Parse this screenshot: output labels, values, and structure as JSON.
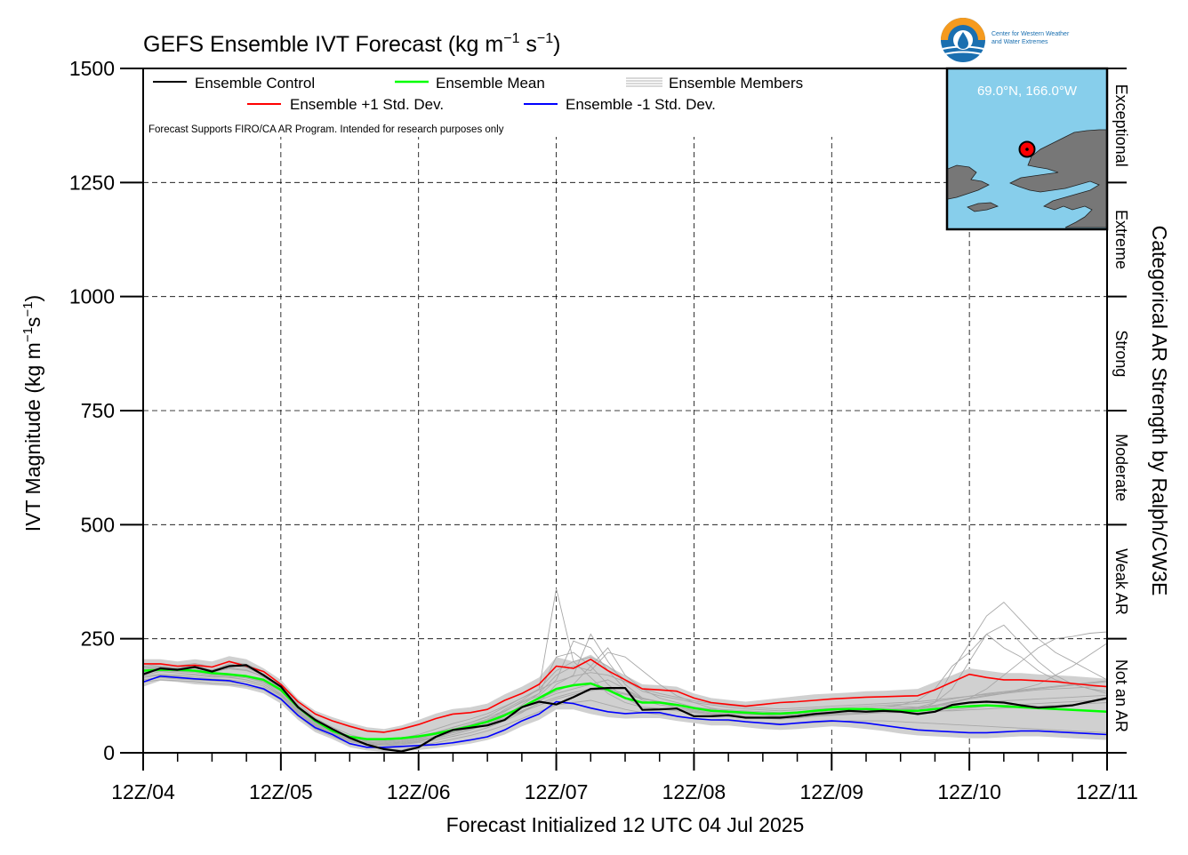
{
  "chart_data": {
    "type": "line",
    "title": "GEFS Ensemble IVT Forecast (kg m",
    "title_sup1": "−1",
    "title_mid": " s",
    "title_sup2": "−1",
    "title_end": ")",
    "ylabel": "IVT Magnitude (kg m",
    "ylabel_sup1": "−1",
    "ylabel_mid": "s",
    "ylabel_sup2": "−1",
    "ylabel_end": ")",
    "xlabel": "Forecast Initialized 12 UTC 04 Jul 2025",
    "right_axis_label": "Categorical AR Strength by Ralph/CW3E",
    "ylim": [
      0,
      1500
    ],
    "xlim": [
      0,
      168
    ],
    "y_ticks": [
      0,
      250,
      500,
      750,
      1000,
      1250,
      1500
    ],
    "x_ticks": [
      {
        "x": 0,
        "label": "12Z/04"
      },
      {
        "x": 24,
        "label": "12Z/05"
      },
      {
        "x": 48,
        "label": "12Z/06"
      },
      {
        "x": 72,
        "label": "12Z/07"
      },
      {
        "x": 96,
        "label": "12Z/08"
      },
      {
        "x": 120,
        "label": "12Z/09"
      },
      {
        "x": 144,
        "label": "12Z/10"
      },
      {
        "x": 168,
        "label": "12Z/11"
      }
    ],
    "grid": true,
    "grid_vertical_max": 1350,
    "categories": [
      {
        "label": "Not an AR",
        "from": 0,
        "to": 250
      },
      {
        "label": "Weak AR",
        "from": 250,
        "to": 500
      },
      {
        "label": "Moderate",
        "from": 500,
        "to": 750
      },
      {
        "label": "Strong",
        "from": 750,
        "to": 1000
      },
      {
        "label": "Extreme",
        "from": 1000,
        "to": 1250
      },
      {
        "label": "Exceptional",
        "from": 1250,
        "to": 1500
      }
    ],
    "legend": {
      "placement": "top-left",
      "entries": [
        {
          "label": "Ensemble Control",
          "color": "#000000"
        },
        {
          "label": "Ensemble Mean",
          "color": "#00ff00"
        },
        {
          "label": "Ensemble Members",
          "color": "#b0b0b0"
        },
        {
          "label": "Ensemble +1 Std. Dev.",
          "color": "#ff0000"
        },
        {
          "label": "Ensemble -1 Std. Dev.",
          "color": "#0000ff"
        }
      ]
    },
    "note": "Forecast Supports FIRO/CA AR Program. Intended for research purposes only",
    "x": [
      0,
      3,
      6,
      9,
      12,
      15,
      18,
      21,
      24,
      27,
      30,
      33,
      36,
      39,
      42,
      45,
      48,
      51,
      54,
      57,
      60,
      63,
      66,
      69,
      72,
      75,
      78,
      81,
      84,
      87,
      90,
      93,
      96,
      99,
      102,
      105,
      108,
      111,
      114,
      117,
      120,
      123,
      126,
      129,
      132,
      135,
      138,
      141,
      144,
      147,
      150,
      153,
      156,
      159,
      162,
      165,
      168
    ],
    "series": [
      {
        "name": "Ensemble Control",
        "color": "#000000",
        "values": [
          172,
          185,
          182,
          188,
          178,
          190,
          192,
          170,
          145,
          100,
          72,
          52,
          33,
          18,
          8,
          3,
          12,
          35,
          50,
          55,
          60,
          72,
          100,
          112,
          106,
          122,
          140,
          142,
          142,
          94,
          95,
          97,
          80,
          80,
          82,
          77,
          77,
          77,
          80,
          85,
          88,
          92,
          90,
          92,
          90,
          85,
          90,
          105,
          110,
          112,
          110,
          104,
          99,
          101,
          104,
          112,
          120
        ]
      },
      {
        "name": "Ensemble Mean",
        "color": "#00ff00",
        "values": [
          180,
          182,
          182,
          180,
          175,
          172,
          168,
          160,
          138,
          100,
          70,
          48,
          35,
          30,
          30,
          32,
          36,
          42,
          50,
          58,
          68,
          82,
          100,
          120,
          140,
          148,
          152,
          138,
          120,
          110,
          110,
          105,
          98,
          92,
          90,
          88,
          86,
          86,
          88,
          92,
          95,
          96,
          96,
          94,
          92,
          92,
          96,
          100,
          102,
          104,
          102,
          100,
          98,
          96,
          94,
          92,
          90
        ]
      },
      {
        "name": "Ensemble +1 Std. Dev.",
        "color": "#ff0000",
        "values": [
          195,
          195,
          190,
          192,
          188,
          200,
          190,
          178,
          150,
          112,
          85,
          70,
          58,
          48,
          45,
          52,
          62,
          75,
          85,
          88,
          95,
          115,
          130,
          150,
          190,
          185,
          205,
          180,
          160,
          140,
          138,
          135,
          120,
          110,
          106,
          102,
          106,
          110,
          112,
          115,
          118,
          120,
          122,
          123,
          124,
          125,
          138,
          155,
          172,
          165,
          160,
          160,
          158,
          156,
          152,
          148,
          145
        ]
      },
      {
        "name": "Ensemble -1 Std. Dev.",
        "color": "#0000ff",
        "values": [
          155,
          168,
          165,
          162,
          160,
          158,
          150,
          140,
          118,
          82,
          55,
          40,
          20,
          12,
          12,
          14,
          16,
          18,
          22,
          28,
          35,
          50,
          70,
          85,
          112,
          108,
          98,
          90,
          86,
          88,
          88,
          80,
          75,
          72,
          72,
          68,
          65,
          62,
          65,
          68,
          70,
          68,
          65,
          60,
          55,
          50,
          48,
          46,
          44,
          44,
          46,
          48,
          48,
          46,
          44,
          42,
          40
        ]
      }
    ],
    "members_envelope": {
      "upper": [
        205,
        205,
        200,
        205,
        200,
        212,
        205,
        185,
        160,
        118,
        92,
        78,
        66,
        56,
        52,
        60,
        72,
        86,
        96,
        100,
        108,
        128,
        145,
        165,
        210,
        200,
        215,
        190,
        170,
        150,
        148,
        145,
        130,
        120,
        116,
        112,
        116,
        120,
        124,
        128,
        130,
        132,
        135,
        136,
        138,
        140,
        155,
        170,
        185,
        180,
        175,
        175,
        172,
        170,
        168,
        165,
        162
      ],
      "lower": [
        145,
        158,
        155,
        150,
        148,
        146,
        140,
        130,
        108,
        72,
        45,
        30,
        12,
        5,
        2,
        4,
        6,
        10,
        15,
        20,
        28,
        40,
        58,
        72,
        95,
        95,
        85,
        78,
        75,
        76,
        76,
        70,
        65,
        60,
        60,
        56,
        52,
        50,
        52,
        55,
        58,
        56,
        52,
        48,
        42,
        38,
        36,
        34,
        32,
        32,
        34,
        36,
        36,
        34,
        32,
        30,
        28
      ]
    },
    "members": [
      [
        188,
        190,
        186,
        192,
        180,
        195,
        188,
        172,
        142,
        102,
        70,
        50,
        30,
        16,
        8,
        6,
        16,
        32,
        45,
        55,
        70,
        95,
        115,
        140,
        360,
        200,
        165,
        130,
        110,
        100,
        98,
        96,
        90,
        86,
        84,
        80,
        78,
        80,
        84,
        88,
        92,
        96,
        98,
        100,
        105,
        115,
        140,
        190,
        220,
        260,
        230,
        210,
        180,
        160,
        150,
        140,
        130
      ],
      [
        170,
        178,
        175,
        172,
        168,
        165,
        160,
        150,
        128,
        92,
        60,
        42,
        26,
        20,
        18,
        20,
        25,
        32,
        40,
        50,
        62,
        80,
        105,
        130,
        210,
        220,
        190,
        150,
        120,
        100,
        96,
        92,
        88,
        84,
        80,
        78,
        76,
        74,
        76,
        80,
        84,
        86,
        88,
        88,
        90,
        92,
        110,
        180,
        240,
        300,
        330,
        290,
        250,
        220,
        200,
        180,
        160
      ],
      [
        175,
        182,
        180,
        178,
        172,
        170,
        166,
        156,
        134,
        96,
        66,
        46,
        32,
        26,
        26,
        30,
        36,
        45,
        56,
        66,
        78,
        92,
        110,
        125,
        160,
        245,
        230,
        180,
        140,
        115,
        105,
        100,
        94,
        88,
        86,
        84,
        82,
        80,
        82,
        86,
        90,
        92,
        94,
        96,
        98,
        100,
        110,
        140,
        200,
        260,
        280,
        240,
        200,
        170,
        150,
        140,
        135
      ],
      [
        160,
        165,
        162,
        160,
        158,
        155,
        150,
        142,
        120,
        86,
        58,
        40,
        24,
        18,
        16,
        18,
        22,
        28,
        36,
        44,
        55,
        70,
        88,
        110,
        150,
        170,
        260,
        200,
        150,
        120,
        110,
        100,
        92,
        86,
        82,
        80,
        78,
        76,
        78,
        82,
        86,
        88,
        90,
        92,
        94,
        96,
        100,
        110,
        120,
        140,
        170,
        200,
        230,
        250,
        255,
        262,
        265
      ],
      [
        182,
        186,
        184,
        186,
        178,
        184,
        180,
        168,
        140,
        100,
        70,
        50,
        34,
        24,
        20,
        24,
        30,
        40,
        52,
        62,
        74,
        90,
        112,
        130,
        170,
        190,
        180,
        220,
        210,
        180,
        150,
        125,
        110,
        98,
        92,
        88,
        86,
        84,
        86,
        90,
        94,
        96,
        98,
        100,
        102,
        100,
        104,
        110,
        118,
        124,
        130,
        140,
        150,
        170,
        190,
        215,
        240
      ],
      [
        178,
        180,
        178,
        176,
        170,
        168,
        164,
        154,
        130,
        94,
        64,
        44,
        30,
        22,
        20,
        22,
        28,
        36,
        46,
        56,
        68,
        84,
        100,
        118,
        135,
        150,
        190,
        230,
        170,
        140,
        120,
        110,
        100,
        94,
        90,
        86,
        84,
        82,
        84,
        86,
        88,
        90,
        92,
        94,
        96,
        98,
        102,
        106,
        110,
        112,
        114,
        116,
        118,
        120,
        122,
        124,
        126
      ],
      [
        165,
        170,
        168,
        166,
        162,
        160,
        156,
        146,
        124,
        88,
        60,
        42,
        28,
        22,
        22,
        26,
        32,
        40,
        50,
        60,
        72,
        86,
        100,
        115,
        130,
        140,
        150,
        160,
        140,
        120,
        110,
        104,
        98,
        92,
        88,
        86,
        84,
        80,
        80,
        82,
        84,
        86,
        86,
        88,
        88,
        88,
        90,
        94,
        98,
        102,
        104,
        106,
        108,
        110,
        112,
        114,
        116
      ],
      [
        185,
        188,
        186,
        190,
        182,
        192,
        186,
        170,
        146,
        104,
        72,
        52,
        36,
        26,
        24,
        28,
        34,
        44,
        56,
        66,
        80,
        100,
        120,
        140,
        180,
        200,
        210,
        190,
        160,
        135,
        125,
        118,
        110,
        105,
        100,
        96,
        94,
        92,
        94,
        96,
        98,
        100,
        102,
        104,
        106,
        108,
        112,
        118,
        124,
        130,
        134,
        138,
        142,
        146,
        150,
        154,
        158
      ],
      [
        155,
        160,
        158,
        156,
        152,
        150,
        146,
        138,
        116,
        80,
        52,
        36,
        20,
        12,
        10,
        12,
        16,
        22,
        30,
        38,
        48,
        60,
        75,
        90,
        105,
        110,
        115,
        105,
        95,
        88,
        84,
        80,
        76,
        72,
        70,
        68,
        66,
        64,
        64,
        66,
        68,
        70,
        70,
        70,
        68,
        66,
        64,
        62,
        60,
        58,
        56,
        54,
        52,
        50,
        48,
        46,
        44
      ],
      [
        176,
        180,
        178,
        182,
        176,
        186,
        182,
        166,
        140,
        98,
        66,
        46,
        30,
        20,
        16,
        18,
        24,
        34,
        44,
        52,
        62,
        76,
        92,
        108,
        122,
        132,
        140,
        136,
        128,
        118,
        112,
        106,
        100,
        96,
        94,
        92,
        90,
        88,
        90,
        92,
        94,
        96,
        96,
        96,
        94,
        92,
        92,
        92,
        94,
        96,
        98,
        100,
        102,
        104,
        106,
        108,
        110
      ],
      [
        168,
        172,
        170,
        170,
        166,
        166,
        160,
        150,
        126,
        90,
        62,
        44,
        28,
        20,
        18,
        20,
        26,
        34,
        44,
        54,
        64,
        76,
        90,
        104,
        118,
        128,
        136,
        140,
        130,
        120,
        112,
        106,
        100,
        94,
        90,
        86,
        82,
        80,
        80,
        80,
        82,
        84,
        86,
        90,
        94,
        98,
        104,
        112,
        120,
        126,
        130,
        134,
        138,
        140,
        142,
        144,
        146
      ],
      [
        190,
        194,
        190,
        196,
        188,
        200,
        194,
        178,
        150,
        108,
        76,
        56,
        40,
        30,
        28,
        32,
        40,
        52,
        64,
        74,
        86,
        102,
        120,
        138,
        156,
        168,
        176,
        170,
        156,
        140,
        130,
        122,
        114,
        108,
        104,
        100,
        98,
        96,
        98,
        100,
        102,
        104,
        106,
        108,
        110,
        112,
        116,
        120,
        124,
        128,
        132,
        136,
        140,
        144,
        148,
        152,
        156
      ]
    ]
  },
  "inset_map": {
    "label": "69.0°N, 166.0°W",
    "ocean_color": "#87ceeb",
    "land_color": "#777777",
    "marker_color": "#ff0000"
  },
  "logo": {
    "line1": "Center for Western Weather",
    "line2": "and Water Extremes"
  }
}
